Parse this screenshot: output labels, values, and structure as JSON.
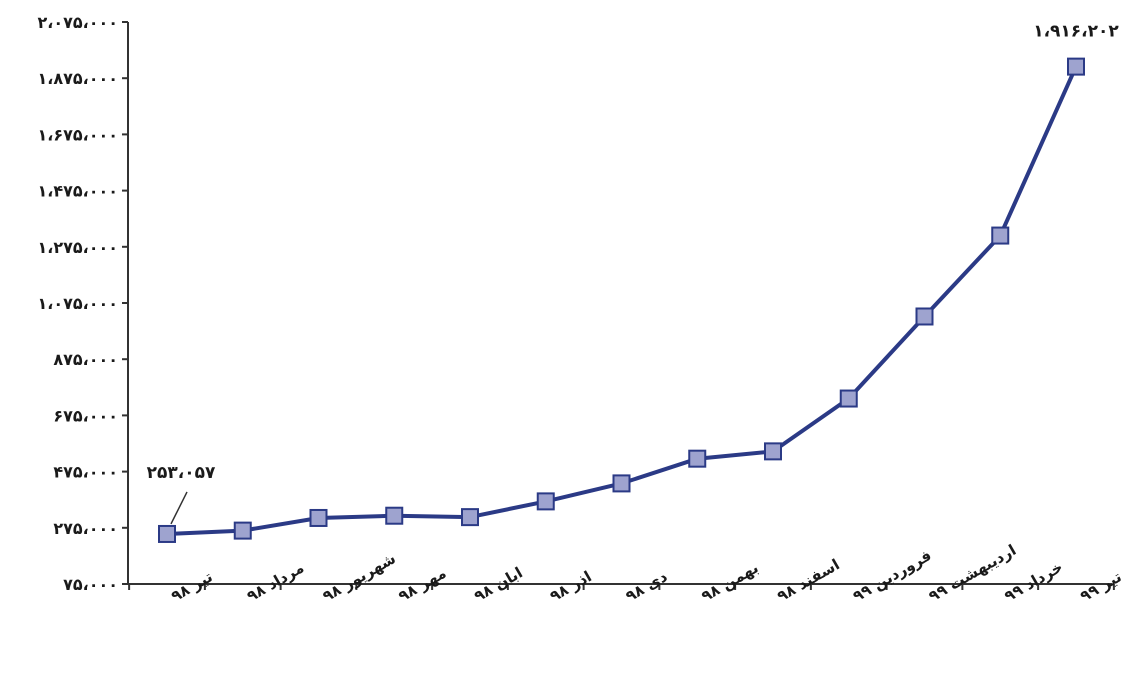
{
  "chart_data": {
    "type": "line",
    "categories": [
      "تیر ۹۸",
      "مرداد ۹۸",
      "شهریور ۹۸",
      "مهر ۹۸",
      "ابان ۹۸",
      "اذر ۹۸",
      "دی ۹۸",
      "بهمن ۹۸",
      "اسفند ۹۸",
      "فروردین ۹۹",
      "اردیبهشت ۹۹",
      "خرداد ۹۹",
      "تیر ۹۹"
    ],
    "series": [
      {
        "values": [
          253057,
          265000,
          310000,
          318000,
          313000,
          369000,
          433000,
          521000,
          547000,
          735000,
          1027000,
          1315000,
          1916202
        ]
      }
    ],
    "yticks": [
      "۷۵،۰۰۰",
      "۲۷۵،۰۰۰",
      "۴۷۵،۰۰۰",
      "۶۷۵،۰۰۰",
      "۸۷۵،۰۰۰",
      "۱،۰۷۵،۰۰۰",
      "۱،۲۷۵،۰۰۰",
      "۱،۴۷۵،۰۰۰",
      "۱،۶۷۵،۰۰۰",
      "۱،۸۷۵،۰۰۰",
      "۲،۰۷۵،۰۰۰"
    ],
    "ylim": [
      75000,
      2075000
    ],
    "annotations": [
      {
        "index": 0,
        "text": "۲۵۳،۰۵۷"
      },
      {
        "index": 12,
        "text": "۱،۹۱۶،۲۰۲"
      }
    ],
    "title": "",
    "xlabel": "",
    "ylabel": "",
    "grid": false,
    "colors": {
      "line": "#2b3a86",
      "marker_fill": "#9ea3cf",
      "marker_stroke": "#2b3a86",
      "axis": "#333333"
    }
  }
}
